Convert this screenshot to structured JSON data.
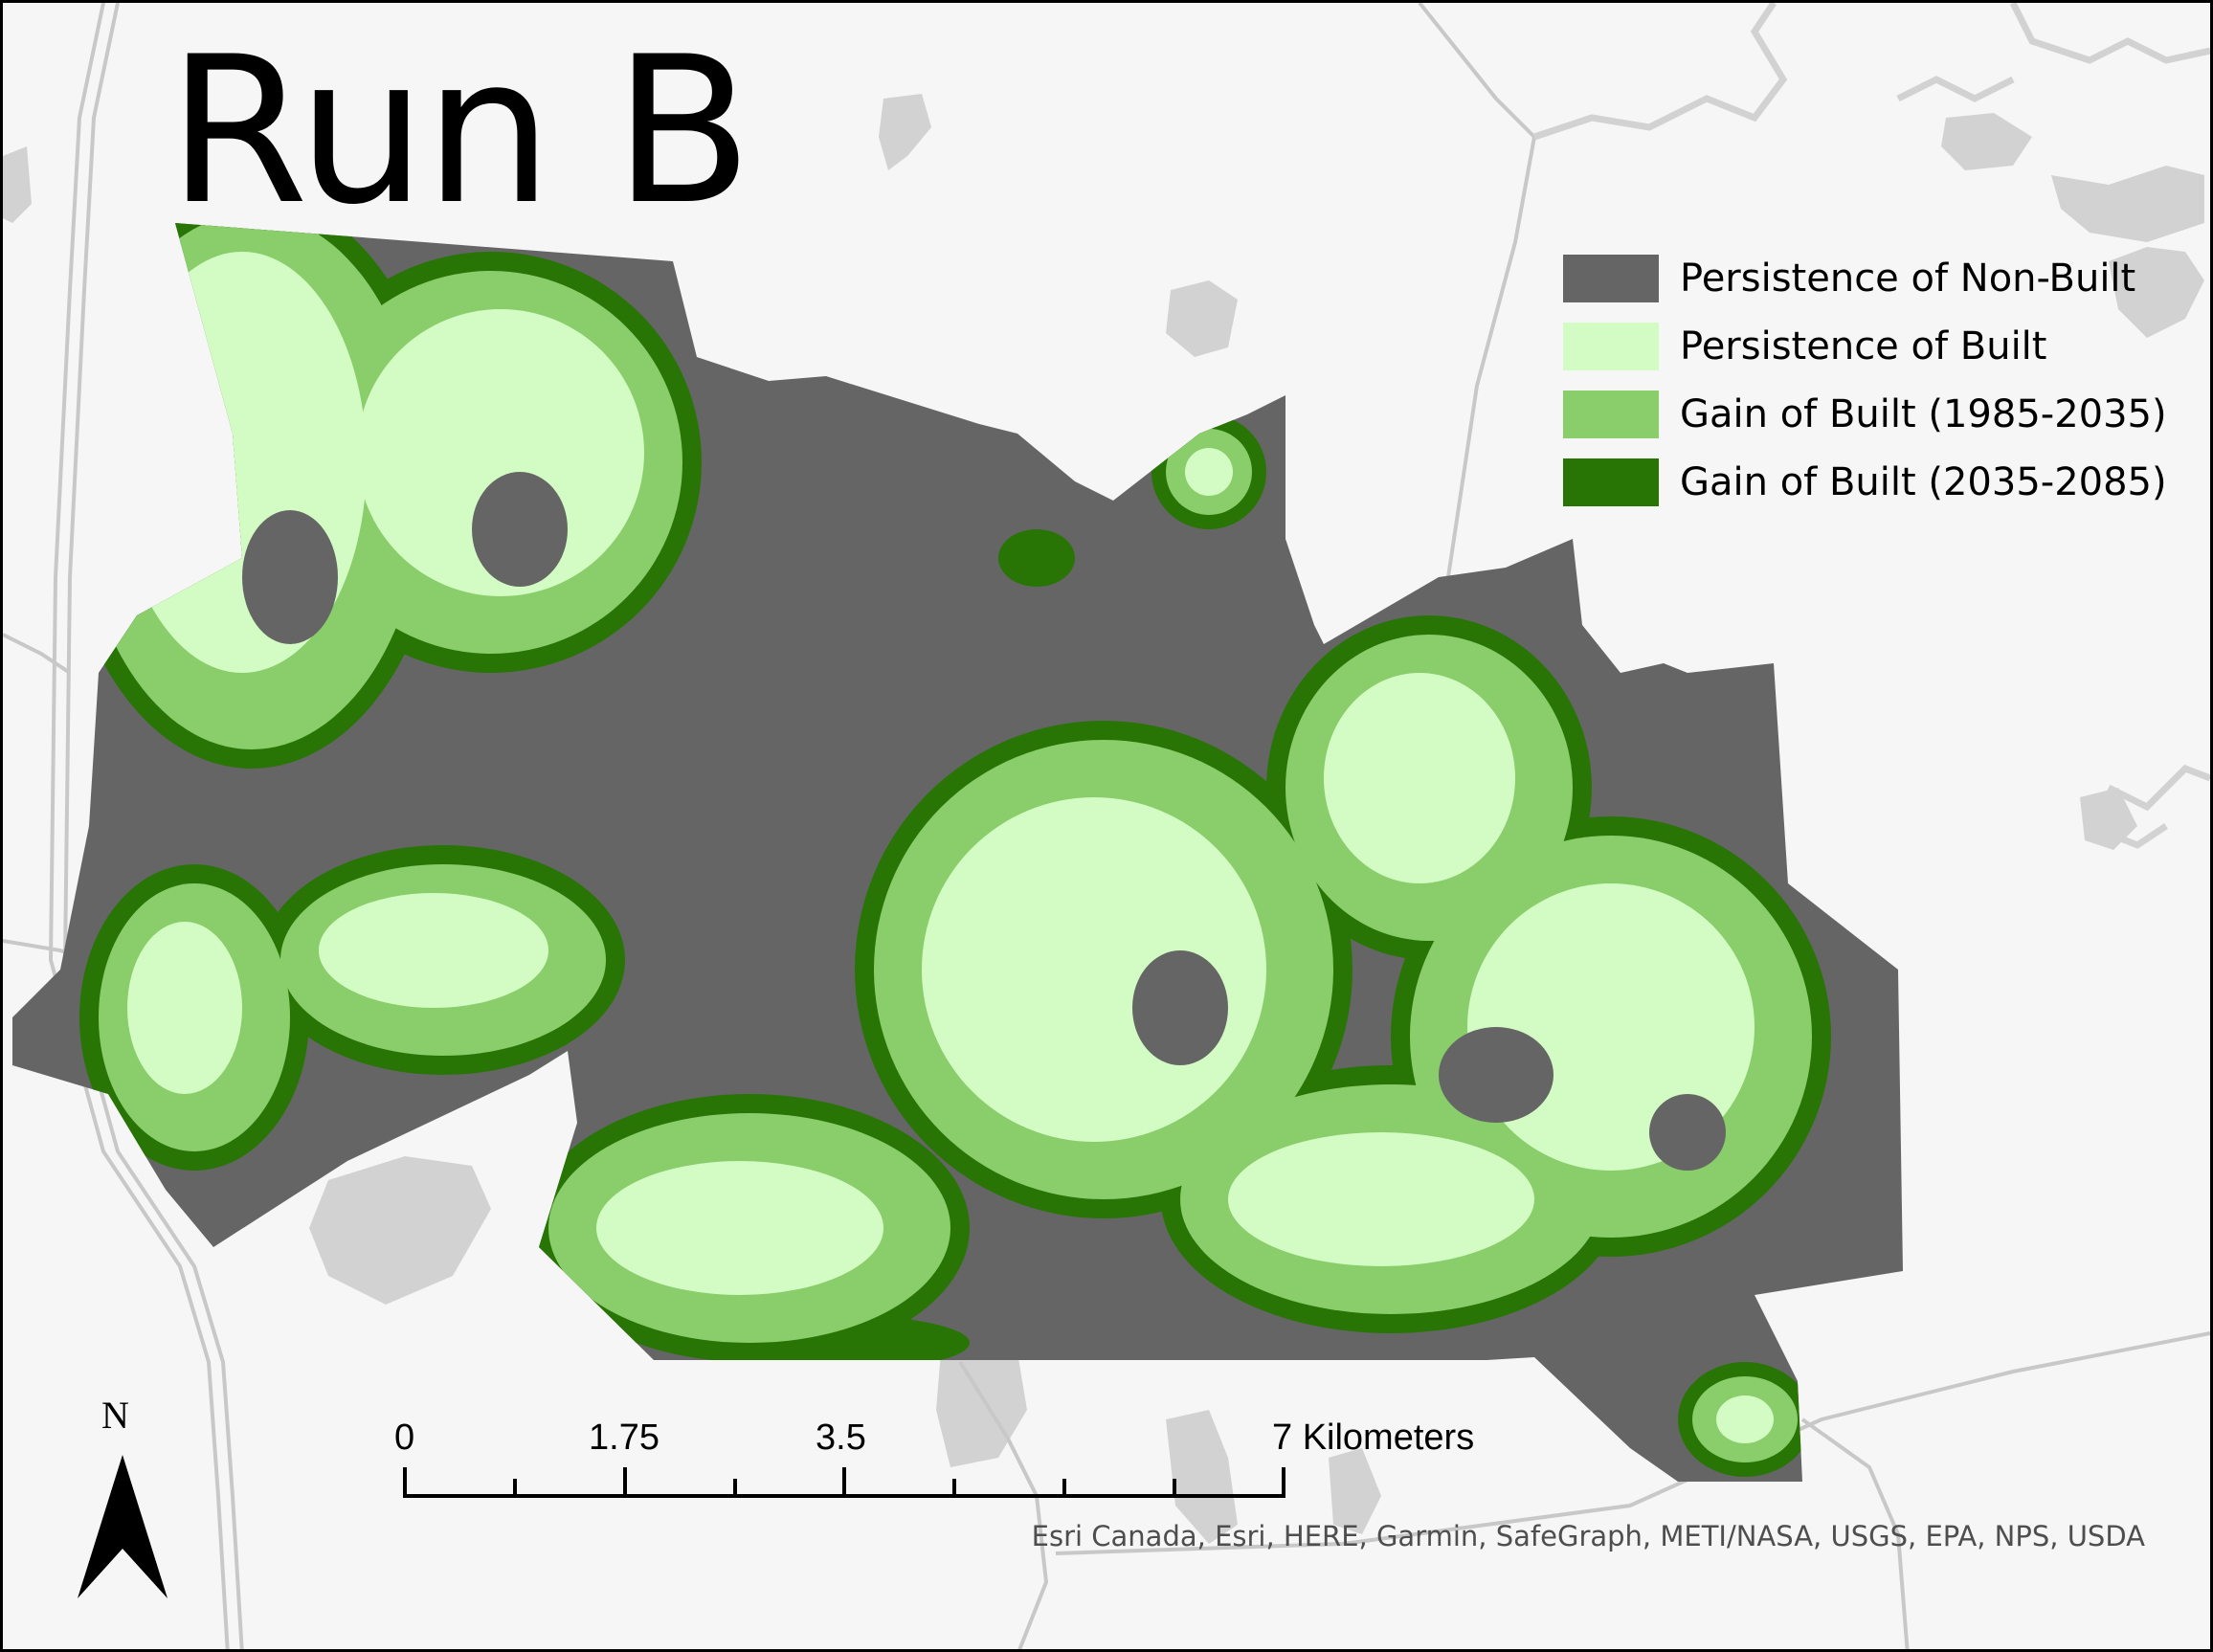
{
  "title": "Run B",
  "legend": {
    "items": [
      {
        "label": "Persistence of Non-Built",
        "color": "#656565"
      },
      {
        "label": "Persistence of Built",
        "color": "#d3fcc4"
      },
      {
        "label": "Gain of Built (1985-2035)",
        "color": "#8acd6b"
      },
      {
        "label": "Gain of Built (2035-2085)",
        "color": "#287506"
      }
    ]
  },
  "scale_bar": {
    "labels": [
      "0",
      "1.75",
      "3.5",
      "7 Kilometers"
    ]
  },
  "north_arrow": {
    "letter": "N",
    "icon": "north-arrow-icon"
  },
  "attribution": "Esri Canada, Esri, HERE, Garmin, SafeGraph, METI/NASA, USGS, EPA, NPS, USDA",
  "colors": {
    "basemap_background": "#f6f6f6",
    "water": "#d2d2d2",
    "roads": "#c8c8c8"
  }
}
